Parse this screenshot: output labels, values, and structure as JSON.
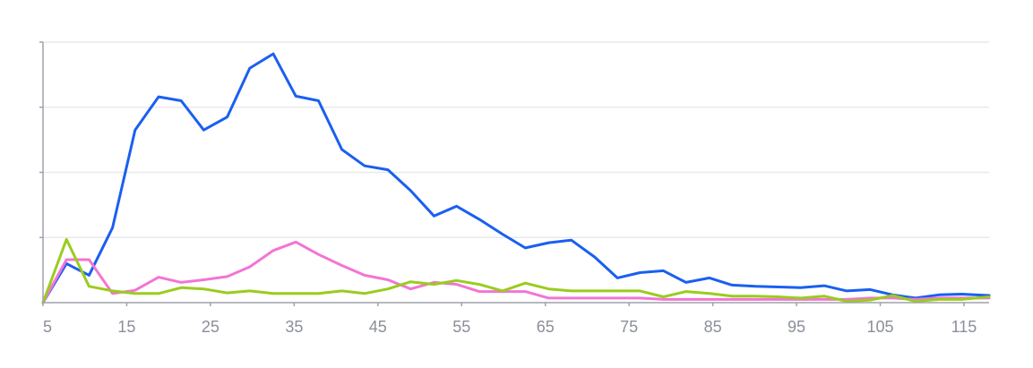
{
  "chart_data": {
    "type": "line",
    "title": "",
    "xlabel": "",
    "ylabel": "",
    "xlim": [
      5,
      118
    ],
    "ylim": [
      0,
      4
    ],
    "grid": true,
    "legend": "none",
    "x_ticks": [
      5,
      15,
      25,
      35,
      45,
      55,
      65,
      75,
      85,
      95,
      105,
      115
    ],
    "y_gridlines": [
      1,
      2,
      3,
      4
    ],
    "series": [
      {
        "color": "#1a5ff0",
        "x": [
          5,
          7.8,
          10.5,
          13.3,
          16,
          18.8,
          21.5,
          24.2,
          27,
          29.7,
          32.5,
          35.2,
          37.9,
          40.7,
          43.4,
          46.2,
          48.9,
          51.7,
          54.4,
          57.1,
          59.9,
          62.6,
          65.4,
          68.1,
          70.9,
          73.6,
          76.3,
          79.1,
          81.8,
          84.6,
          87.3,
          90.1,
          92.8,
          95.5,
          98.3,
          101,
          103.8,
          106.5,
          109.2,
          112,
          114.7,
          118
        ],
        "values": [
          0,
          0.6,
          0.42,
          1.15,
          2.65,
          3.16,
          3.1,
          2.65,
          2.85,
          3.6,
          3.82,
          3.17,
          3.1,
          2.35,
          2.1,
          2.04,
          1.72,
          1.33,
          1.48,
          1.28,
          1.05,
          0.84,
          0.92,
          0.96,
          0.7,
          0.38,
          0.46,
          0.49,
          0.31,
          0.38,
          0.27,
          0.25,
          0.24,
          0.23,
          0.26,
          0.18,
          0.2,
          0.12,
          0.07,
          0.12,
          0.13,
          0.11
        ]
      },
      {
        "color": "#f275d3",
        "x": [
          5,
          7.8,
          10.5,
          13.3,
          16,
          18.8,
          21.5,
          24.2,
          27,
          29.7,
          32.5,
          35.2,
          37.9,
          40.7,
          43.4,
          46.2,
          48.9,
          51.7,
          54.4,
          57.1,
          59.9,
          62.6,
          65.4,
          68.1,
          70.9,
          73.6,
          76.3,
          79.1,
          81.8,
          84.6,
          87.3,
          90.1,
          92.8,
          95.5,
          98.3,
          101,
          103.8,
          106.5,
          109.2,
          112,
          114.7,
          118
        ],
        "values": [
          0,
          0.66,
          0.66,
          0.14,
          0.19,
          0.39,
          0.31,
          0.35,
          0.4,
          0.55,
          0.8,
          0.93,
          0.74,
          0.57,
          0.42,
          0.35,
          0.21,
          0.31,
          0.28,
          0.17,
          0.17,
          0.17,
          0.07,
          0.07,
          0.07,
          0.07,
          0.07,
          0.05,
          0.05,
          0.05,
          0.05,
          0.05,
          0.05,
          0.05,
          0.05,
          0.05,
          0.07,
          0.07,
          0.05,
          0.07,
          0.07,
          0.07
        ]
      },
      {
        "color": "#9acc1e",
        "x": [
          5,
          7.8,
          10.5,
          13.3,
          16,
          18.8,
          21.5,
          24.2,
          27,
          29.7,
          32.5,
          35.2,
          37.9,
          40.7,
          43.4,
          46.2,
          48.9,
          51.7,
          54.4,
          57.1,
          59.9,
          62.6,
          65.4,
          68.1,
          70.9,
          73.6,
          76.3,
          79.1,
          81.8,
          84.6,
          87.3,
          90.1,
          92.8,
          95.5,
          98.3,
          101,
          103.8,
          106.5,
          109.2,
          112,
          114.7,
          118
        ],
        "values": [
          0,
          0.97,
          0.25,
          0.18,
          0.14,
          0.14,
          0.23,
          0.21,
          0.15,
          0.18,
          0.14,
          0.14,
          0.14,
          0.18,
          0.14,
          0.21,
          0.32,
          0.28,
          0.34,
          0.28,
          0.18,
          0.3,
          0.21,
          0.18,
          0.18,
          0.18,
          0.18,
          0.09,
          0.17,
          0.14,
          0.1,
          0.1,
          0.09,
          0.07,
          0.1,
          0.02,
          0.04,
          0.11,
          0.02,
          0.05,
          0.05,
          0.09
        ]
      }
    ]
  }
}
